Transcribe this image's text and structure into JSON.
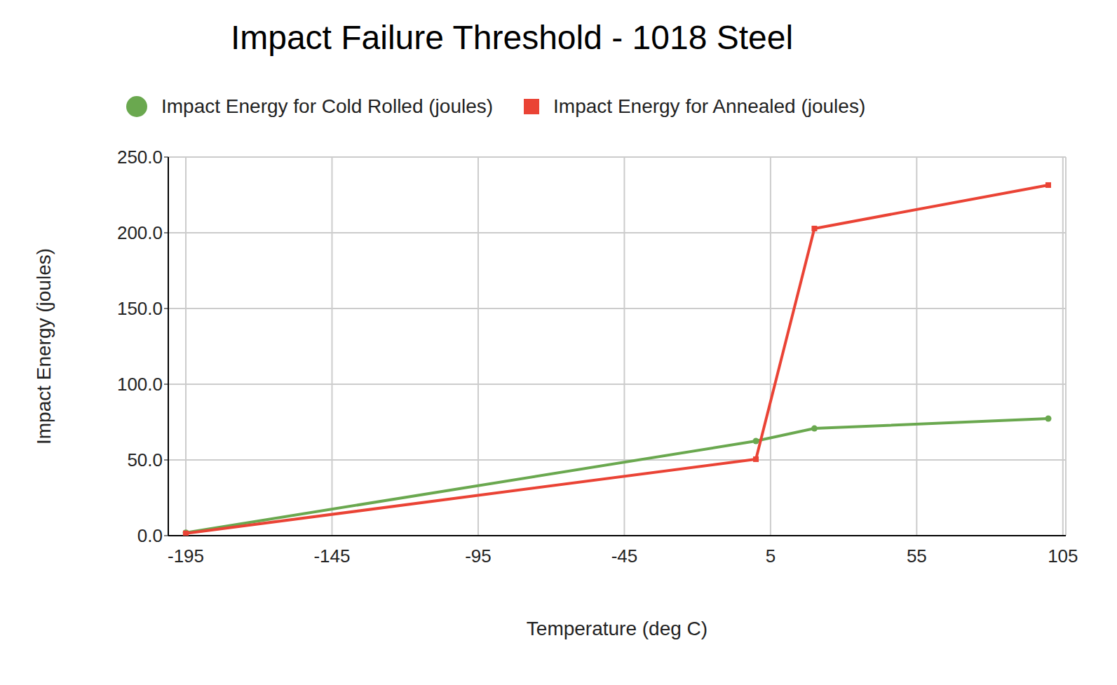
{
  "chart_data": {
    "type": "line",
    "title": "Impact Failure Threshold - 1018 Steel",
    "x_label": "Temperature (deg C)",
    "y_label": "Impact Energy (joules)",
    "x": [
      -195,
      0,
      20,
      100
    ],
    "series": [
      {
        "name": "Impact Energy for Cold Rolled (joules)",
        "color": "#6aa84f",
        "marker": "circle",
        "values": [
          2,
          62.5,
          70.8,
          77.3
        ]
      },
      {
        "name": "Impact Energy for Annealed (joules)",
        "color": "#ea4335",
        "marker": "square",
        "values": [
          1.5,
          50.5,
          202.8,
          231.5
        ]
      }
    ],
    "xlim": [
      -201,
      106
    ],
    "xticks": [
      -195,
      -145,
      -95,
      -45,
      5,
      55,
      105
    ],
    "ylim": [
      0,
      250
    ],
    "yticks": [
      {
        "value": 0,
        "label": "0.0"
      },
      {
        "value": 50,
        "label": "50.0"
      },
      {
        "value": 100,
        "label": "100.0"
      },
      {
        "value": 150,
        "label": "150.0"
      },
      {
        "value": 200,
        "label": "200.0"
      },
      {
        "value": 250,
        "label": "250.0"
      }
    ],
    "grid": true,
    "legend": "top"
  }
}
